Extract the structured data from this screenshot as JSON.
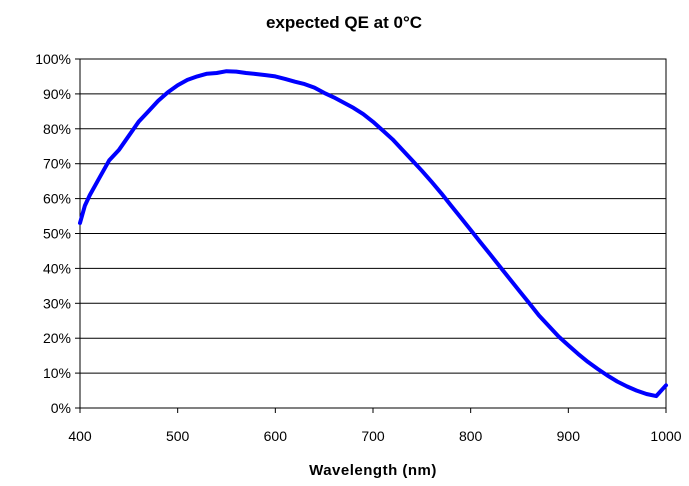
{
  "chart_data": {
    "type": "line",
    "title": "expected QE at 0°C",
    "xlabel": "Wavelength (nm)",
    "ylabel": "",
    "xlim": [
      400,
      1000
    ],
    "ylim": [
      0,
      100
    ],
    "x_ticks": [
      400,
      500,
      600,
      700,
      800,
      900,
      1000
    ],
    "y_ticks": [
      0,
      10,
      20,
      30,
      40,
      50,
      60,
      70,
      80,
      90,
      100
    ],
    "y_tick_labels": [
      "0%",
      "10%",
      "20%",
      "30%",
      "40%",
      "50%",
      "60%",
      "70%",
      "80%",
      "90%",
      "100%"
    ],
    "grid": "horizontal",
    "legend": "none",
    "series_color": "#0000ff",
    "series": [
      {
        "x": [
          400,
          405,
          410,
          420,
          430,
          440,
          450,
          460,
          470,
          480,
          490,
          500,
          510,
          520,
          530,
          540,
          550,
          560,
          570,
          580,
          590,
          600,
          610,
          620,
          630,
          640,
          650,
          660,
          670,
          680,
          690,
          700,
          710,
          720,
          730,
          740,
          750,
          760,
          770,
          780,
          790,
          800,
          810,
          820,
          830,
          840,
          850,
          860,
          870,
          880,
          890,
          900,
          910,
          920,
          930,
          940,
          950,
          960,
          970,
          980,
          990,
          1000
        ],
        "y": [
          53,
          58,
          61,
          66,
          71,
          74,
          78,
          82,
          85,
          88,
          90.5,
          92.5,
          94,
          95,
          95.8,
          96,
          96.5,
          96.4,
          96,
          95.7,
          95.4,
          95,
          94.3,
          93.5,
          92.8,
          91.8,
          90.3,
          89,
          87.5,
          86,
          84.2,
          82,
          79.5,
          77,
          74,
          71,
          68,
          64.8,
          61.5,
          58,
          54.5,
          51,
          47.5,
          44,
          40.5,
          37,
          33.5,
          30,
          26.5,
          23.5,
          20.5,
          18,
          15.5,
          13.2,
          11.2,
          9.3,
          7.6,
          6.2,
          5,
          4,
          3.4,
          6.5
        ]
      }
    ]
  }
}
